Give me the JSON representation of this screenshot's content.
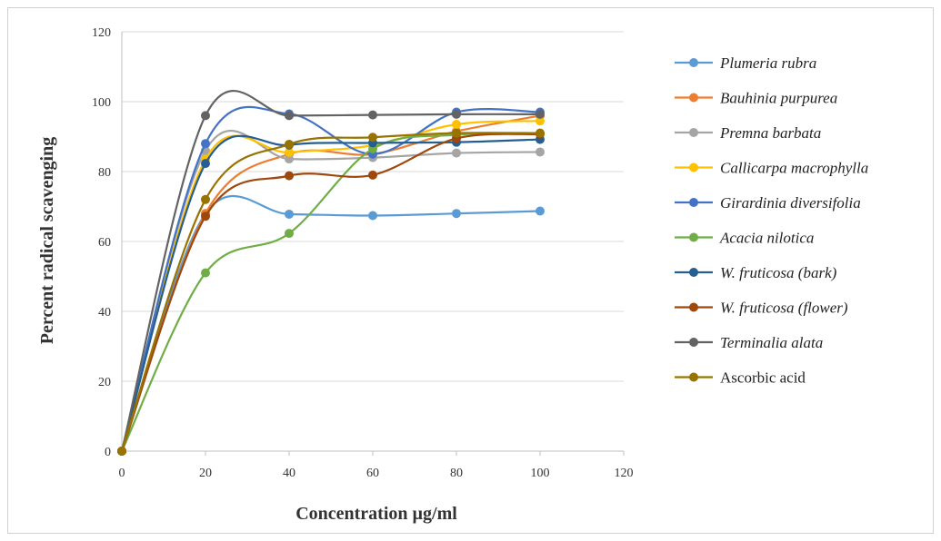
{
  "chart_data": {
    "type": "line",
    "title": "",
    "xlabel": "Concentration µg/ml",
    "ylabel": "Percent radical scavenging",
    "xlim": [
      0,
      120
    ],
    "ylim": [
      0,
      120
    ],
    "xticks": [
      0,
      20,
      40,
      60,
      80,
      100,
      120
    ],
    "yticks": [
      0,
      20,
      40,
      60,
      80,
      100,
      120
    ],
    "grid": "horizontal",
    "legend_position": "right",
    "smooth": true,
    "x": [
      0,
      20,
      40,
      60,
      80,
      100
    ],
    "series": [
      {
        "name": "Plumeria rubra",
        "italic": true,
        "color": "#5B9BD5",
        "values": [
          0,
          68,
          67.8,
          67.4,
          68,
          68.7
        ]
      },
      {
        "name": "Bauhinia purpurea",
        "italic": true,
        "color": "#ED7D31",
        "values": [
          0,
          68,
          85,
          85,
          91.5,
          96
        ]
      },
      {
        "name": "Premna barbata",
        "italic": true,
        "color": "#A5A5A5",
        "values": [
          0,
          86,
          83.6,
          84,
          85.3,
          85.6
        ]
      },
      {
        "name": "Callicarpa macrophylla",
        "italic": true,
        "color": "#FFC000",
        "values": [
          0,
          83.5,
          85.5,
          87.5,
          93.5,
          94.5
        ]
      },
      {
        "name": "Girardinia diversifolia",
        "italic": true,
        "color": "#4472C4",
        "values": [
          0,
          88,
          96.5,
          85,
          97,
          97
        ]
      },
      {
        "name": "Acacia nilotica",
        "italic": true,
        "color": "#70AD47",
        "values": [
          0,
          51,
          62.3,
          86.5,
          90.5,
          91
        ]
      },
      {
        "name": "W. fruticosa (bark)",
        "italic": true,
        "color": "#255E91",
        "values": [
          0,
          82.3,
          87.6,
          88.2,
          88.4,
          89.2
        ]
      },
      {
        "name": "W. fruticosa (flower)",
        "italic": true,
        "color": "#9E480E",
        "values": [
          0,
          67.2,
          78.8,
          79,
          89.5,
          90.7
        ]
      },
      {
        "name": "Terminalia alata",
        "italic": true,
        "color": "#636363",
        "values": [
          0,
          96,
          96,
          96.2,
          96.4,
          96.4
        ]
      },
      {
        "name": "Ascorbic acid",
        "italic": false,
        "color": "#997300",
        "values": [
          0,
          72,
          87.8,
          89.8,
          91,
          91
        ]
      }
    ]
  }
}
